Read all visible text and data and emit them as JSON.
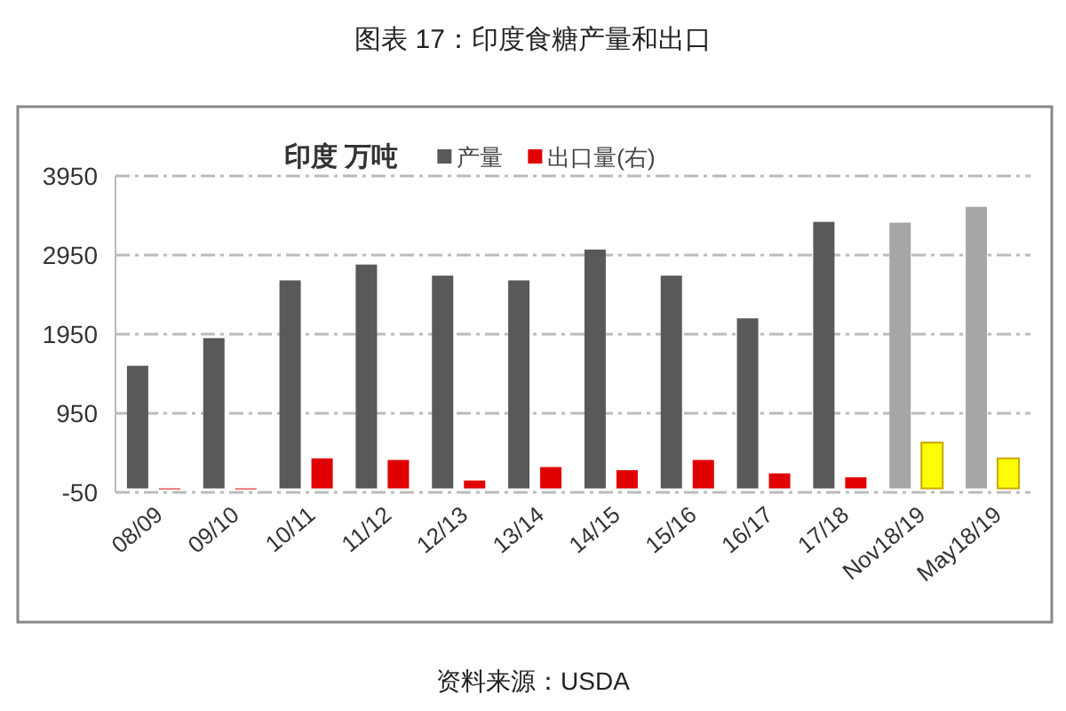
{
  "chart_data": {
    "type": "bar",
    "title": "图表 17：印度食糖产量和出口",
    "legend_title": "印度 万吨",
    "categories": [
      "08/09",
      "09/10",
      "10/11",
      "11/12",
      "12/13",
      "13/14",
      "14/15",
      "15/16",
      "16/17",
      "17/18",
      "Nov18/19",
      "May18/19"
    ],
    "series": [
      {
        "name": "产量",
        "colors": [
          "#595959",
          "#595959",
          "#595959",
          "#595959",
          "#595959",
          "#595959",
          "#595959",
          "#595959",
          "#595959",
          "#595959",
          "#a6a6a6",
          "#a6a6a6"
        ],
        "values": [
          1550,
          1900,
          2630,
          2830,
          2690,
          2630,
          3020,
          2690,
          2150,
          3370,
          3360,
          3560
        ]
      },
      {
        "name": "出口量(右)",
        "colors": [
          "#e00000",
          "#e00000",
          "#e00000",
          "#e00000",
          "#e00000",
          "#e00000",
          "#e00000",
          "#e00000",
          "#e00000",
          "#e00000",
          "#ffff00",
          "#ffff00"
        ],
        "values": [
          0,
          0,
          380,
          360,
          100,
          270,
          230,
          360,
          190,
          140,
          580,
          380
        ]
      }
    ],
    "ylim": [
      -50,
      3950
    ],
    "yticks": [
      -50,
      950,
      1950,
      2950,
      3950
    ],
    "grid": "y",
    "legend": "top",
    "annotations": [
      "资料来源：USDA"
    ]
  }
}
